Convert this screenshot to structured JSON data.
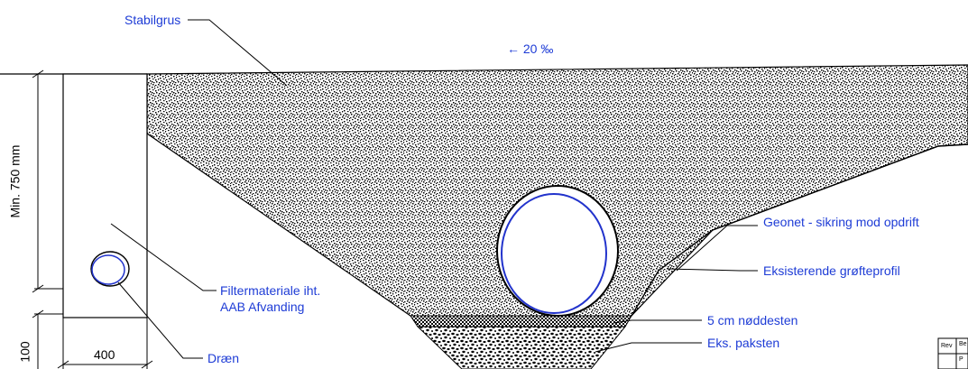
{
  "labels": {
    "stabilgrus": "Stabilgrus",
    "slope": "← 20 ‰",
    "geonet": "Geonet - sikring mod opdrift",
    "existing_profile": "Eksisterende grøfteprofil",
    "filter_line1": "Filtermateriale iht.",
    "filter_line2": "AAB Afvanding",
    "noddesten": "5 cm nøddesten",
    "paksten": "Eks. paksten",
    "draen": "Dræn",
    "depth_dim": "Min. 750 mm",
    "width_dim": "400",
    "lower_dim": "100",
    "titleblock_rev": "Rev",
    "titleblock_be": "Be",
    "titleblock_p": "P"
  },
  "colors": {
    "label_blue": "#1e3cd6",
    "pipe_outline_blue": "#2233cc",
    "fill_texture": "#000000"
  }
}
